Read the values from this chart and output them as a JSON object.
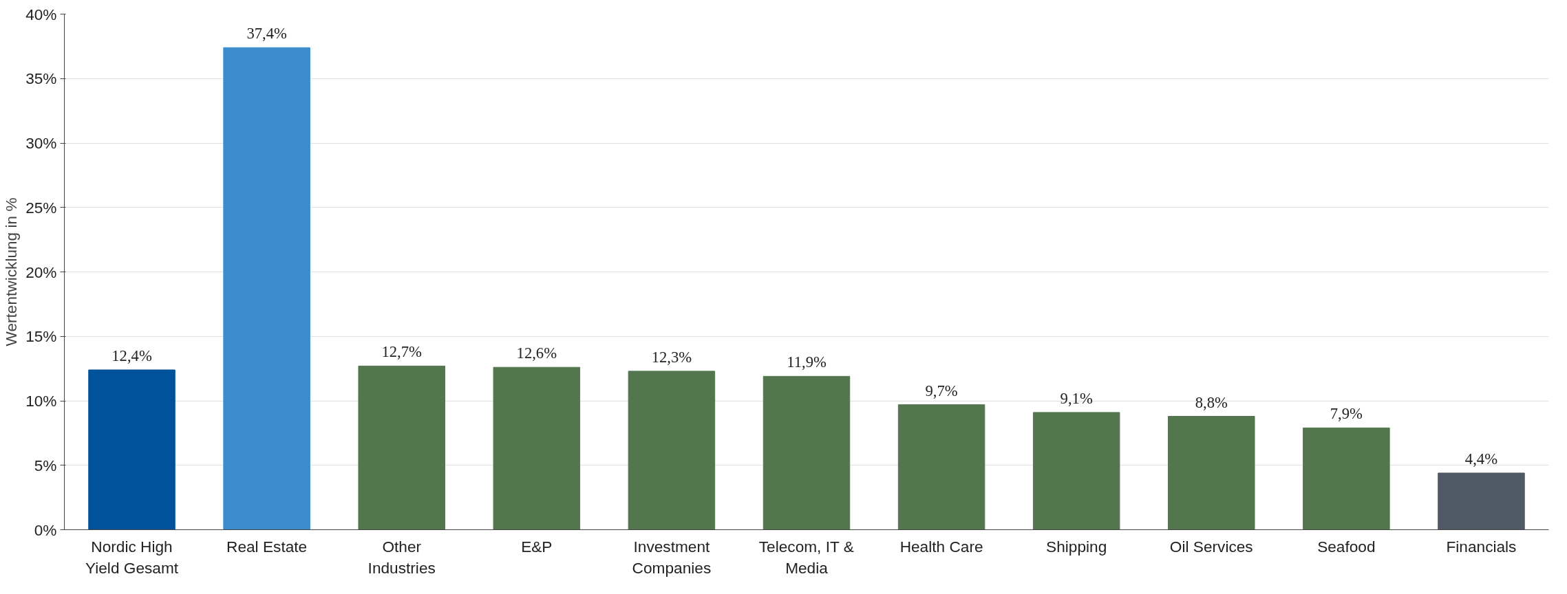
{
  "chart_data": {
    "type": "bar",
    "ylabel": "Wertentwicklung in %",
    "categories": [
      "Nordic High Yield Gesamt",
      "Real Estate",
      "Other Industries",
      "E&P",
      "Investment Companies",
      "Telecom, IT & Media",
      "Health Care",
      "Shipping",
      "Oil Services",
      "Seafood",
      "Financials"
    ],
    "values": [
      12.4,
      37.4,
      12.7,
      12.6,
      12.3,
      11.9,
      9.7,
      9.1,
      8.8,
      7.9,
      4.4
    ],
    "colors": [
      "#00539b",
      "#3a8ccc",
      "#54764f",
      "#54764f",
      "#54764f",
      "#54764f",
      "#54764f",
      "#54764f",
      "#54764f",
      "#54764f",
      "#505a66"
    ],
    "value_labels": [
      "12,4%",
      "37,4%",
      "12,7%",
      "12,6%",
      "12,3%",
      "11,9%",
      "9,7%",
      "9,1%",
      "8,8%",
      "7,9%",
      "4,4%"
    ],
    "ylim": [
      0,
      40
    ],
    "yticks": [
      {
        "value": 0,
        "label": "0%"
      },
      {
        "value": 5,
        "label": "5%"
      },
      {
        "value": 10,
        "label": "10%"
      },
      {
        "value": 15,
        "label": "15%"
      },
      {
        "value": 20,
        "label": "20%"
      },
      {
        "value": 25,
        "label": "25%"
      },
      {
        "value": 30,
        "label": "30%"
      },
      {
        "value": 35,
        "label": "35%"
      },
      {
        "value": 40,
        "label": "40%"
      }
    ],
    "grid": "y"
  }
}
